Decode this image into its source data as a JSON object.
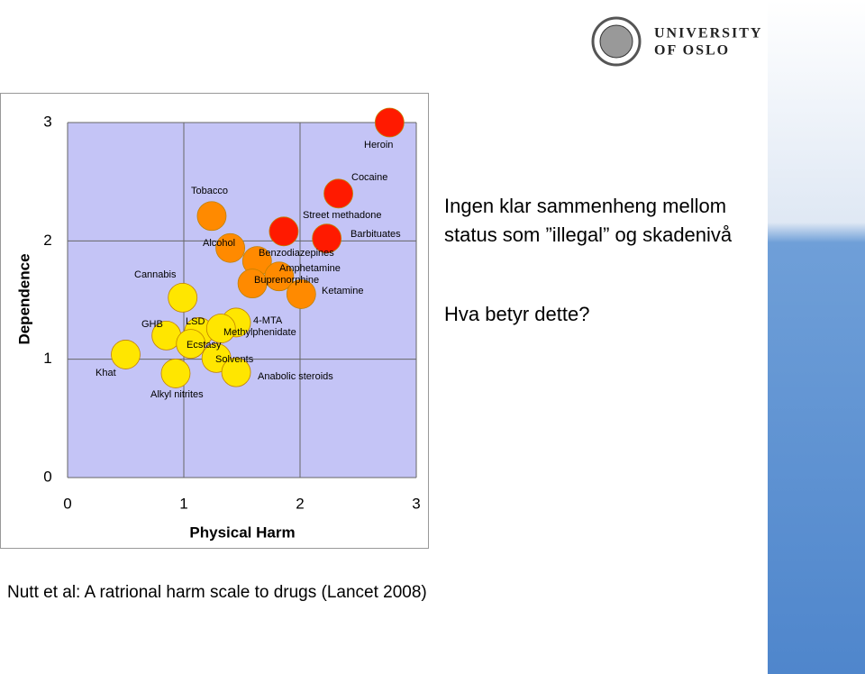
{
  "slide": {
    "logo_line1": "UNIVERSITY",
    "logo_line2": "OF OSLO",
    "text_line1": "Ingen klar sammenheng mellom",
    "text_line2": "status som ”illegal” og skadenivå",
    "question": "Hva betyr dette?",
    "caption": "Nutt et al: A ratrional harm scale to drugs (Lancet 2008)"
  },
  "chart_data": {
    "type": "scatter",
    "xlabel": "Physical Harm",
    "ylabel": "Dependence",
    "xlim": [
      0,
      3
    ],
    "ylim": [
      0,
      3
    ],
    "xticks": [
      0,
      1,
      2,
      3
    ],
    "yticks": [
      0,
      1,
      2,
      3
    ],
    "grid": true,
    "background": "#c4c4f6",
    "labels": [
      "Heroin",
      "Cocaine",
      "Street methadone",
      "Barbituates",
      "Tobacco",
      "Alcohol",
      "Benzodiazepines",
      "Amphetamine",
      "Buprenorphine",
      "Ketamine",
      "Cannabis",
      "LSD",
      "4-MTA",
      "Methylphenidate",
      "GHB",
      "Ecstasy",
      "Khat",
      "Solvents",
      "Alkyl nitrites",
      "Anabolic steroids"
    ],
    "x": [
      2.77,
      2.33,
      1.86,
      2.23,
      1.24,
      1.4,
      1.63,
      1.82,
      1.59,
      2.01,
      0.99,
      1.13,
      1.45,
      1.32,
      0.85,
      1.06,
      0.5,
      1.28,
      0.93,
      1.45
    ],
    "y": [
      3.0,
      2.4,
      2.08,
      2.02,
      2.21,
      1.94,
      1.83,
      1.7,
      1.64,
      1.55,
      1.52,
      1.23,
      1.31,
      1.26,
      1.2,
      1.13,
      1.04,
      1.01,
      0.88,
      0.89
    ],
    "colors": [
      "#ff1a00",
      "#ff1a00",
      "#ff1a00",
      "#ff1a00",
      "#ff8a00",
      "#ff8a00",
      "#ff8a00",
      "#ff8a00",
      "#ff8a00",
      "#ff8a00",
      "#ffe600",
      "#ffe600",
      "#ffe600",
      "#ffe600",
      "#ffe600",
      "#ffe600",
      "#ffe600",
      "#ffe600",
      "#ffe600",
      "#ffe600"
    ]
  }
}
